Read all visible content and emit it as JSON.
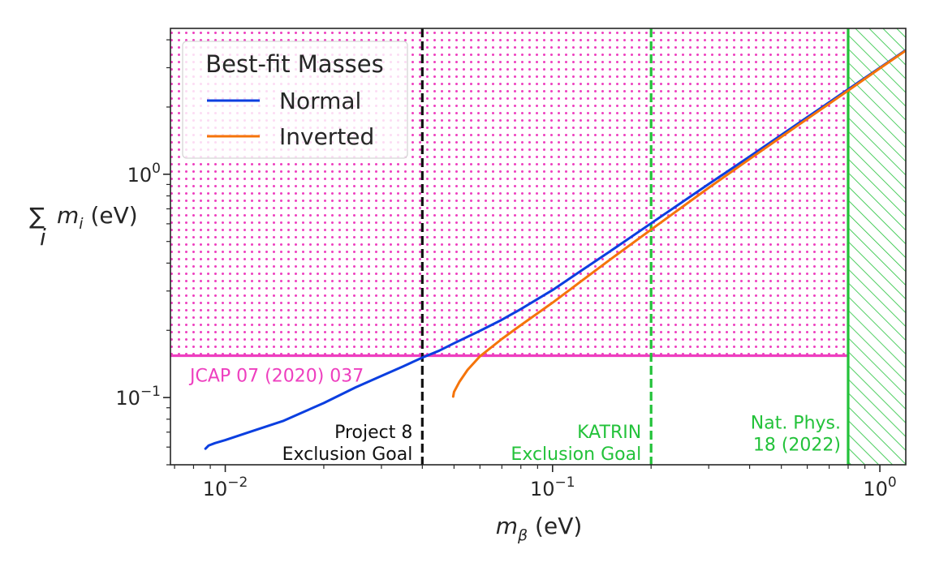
{
  "chart_data": {
    "type": "line",
    "xscale": "log",
    "yscale": "log",
    "xlim": [
      0.0068,
      1.2
    ],
    "ylim": [
      0.05,
      4.5
    ],
    "xticks": [
      {
        "value": 0.01,
        "base": "10",
        "exp": "−2"
      },
      {
        "value": 0.1,
        "base": "10",
        "exp": "−1"
      },
      {
        "value": 1,
        "base": "10",
        "exp": "0"
      }
    ],
    "yticks": [
      {
        "value": 0.1,
        "base": "10",
        "exp": "−1"
      },
      {
        "value": 1,
        "base": "10",
        "exp": "0"
      }
    ],
    "xlabel": {
      "symbol": "m",
      "sub": "β",
      "unit": " (eV)"
    },
    "ylabel": {
      "sum": "∑",
      "index": "i",
      "symbol": "m",
      "sub": "i",
      "unit": " (eV)"
    },
    "legend": {
      "title": "Best-fit Masses",
      "placement": "upper-left",
      "entries": [
        {
          "label": "Normal",
          "color": "#0b3fe0"
        },
        {
          "label": "Inverted",
          "color": "#f5740a"
        }
      ]
    },
    "series": [
      {
        "name": "Normal",
        "color": "#0b3fe0",
        "x": [
          0.0087,
          0.0089,
          0.0093,
          0.01,
          0.012,
          0.015,
          0.02,
          0.025,
          0.03,
          0.035,
          0.04,
          0.045,
          0.05,
          0.06,
          0.07,
          0.08,
          0.1,
          0.12,
          0.15,
          0.2,
          0.3,
          0.4,
          0.5,
          0.6,
          0.8,
          1.0,
          1.2
        ],
        "y": [
          0.059,
          0.061,
          0.0625,
          0.0645,
          0.0705,
          0.0785,
          0.0945,
          0.111,
          0.125,
          0.138,
          0.151,
          0.162,
          0.175,
          0.199,
          0.223,
          0.249,
          0.303,
          0.363,
          0.452,
          0.603,
          0.904,
          1.2,
          1.5,
          1.8,
          2.4,
          3.0,
          3.6
        ]
      },
      {
        "name": "Inverted",
        "color": "#f5740a",
        "x": [
          0.0497,
          0.05,
          0.052,
          0.055,
          0.06,
          0.07,
          0.08,
          0.1,
          0.12,
          0.15,
          0.2,
          0.3,
          0.4,
          0.5,
          0.6,
          0.8,
          1.0,
          1.2
        ],
        "y": [
          0.101,
          0.106,
          0.118,
          0.133,
          0.153,
          0.183,
          0.211,
          0.266,
          0.325,
          0.415,
          0.565,
          0.87,
          1.17,
          1.47,
          1.77,
          2.37,
          2.98,
          3.58
        ]
      }
    ],
    "regions": [
      {
        "name": "JCAP 07 (2020) 037",
        "color": "#ee3fbf",
        "pattern": "dots",
        "y_min": 0.154,
        "x_max": 0.8
      },
      {
        "name": "Nat. Phys. 18 (2022)",
        "color": "#23c23a",
        "pattern": "hatch",
        "x_min": 0.8
      }
    ],
    "vlines": [
      {
        "x": 0.04,
        "color": "#111111",
        "label": [
          "Project 8",
          "Exclusion Goal"
        ]
      },
      {
        "x": 0.2,
        "color": "#23c23a",
        "label": [
          "KATRIN",
          "Exclusion Goal"
        ]
      }
    ],
    "annotations": [
      {
        "text": [
          "JCAP 07 (2020) 037"
        ],
        "color": "#ee3fbf",
        "x": 0.0078,
        "y": 0.118,
        "anchor": "start"
      },
      {
        "text": [
          "Nat. Phys.",
          "18 (2022)"
        ],
        "color": "#23c23a",
        "x": 0.76,
        "y": 0.058,
        "anchor": "end"
      }
    ],
    "grid": false
  }
}
